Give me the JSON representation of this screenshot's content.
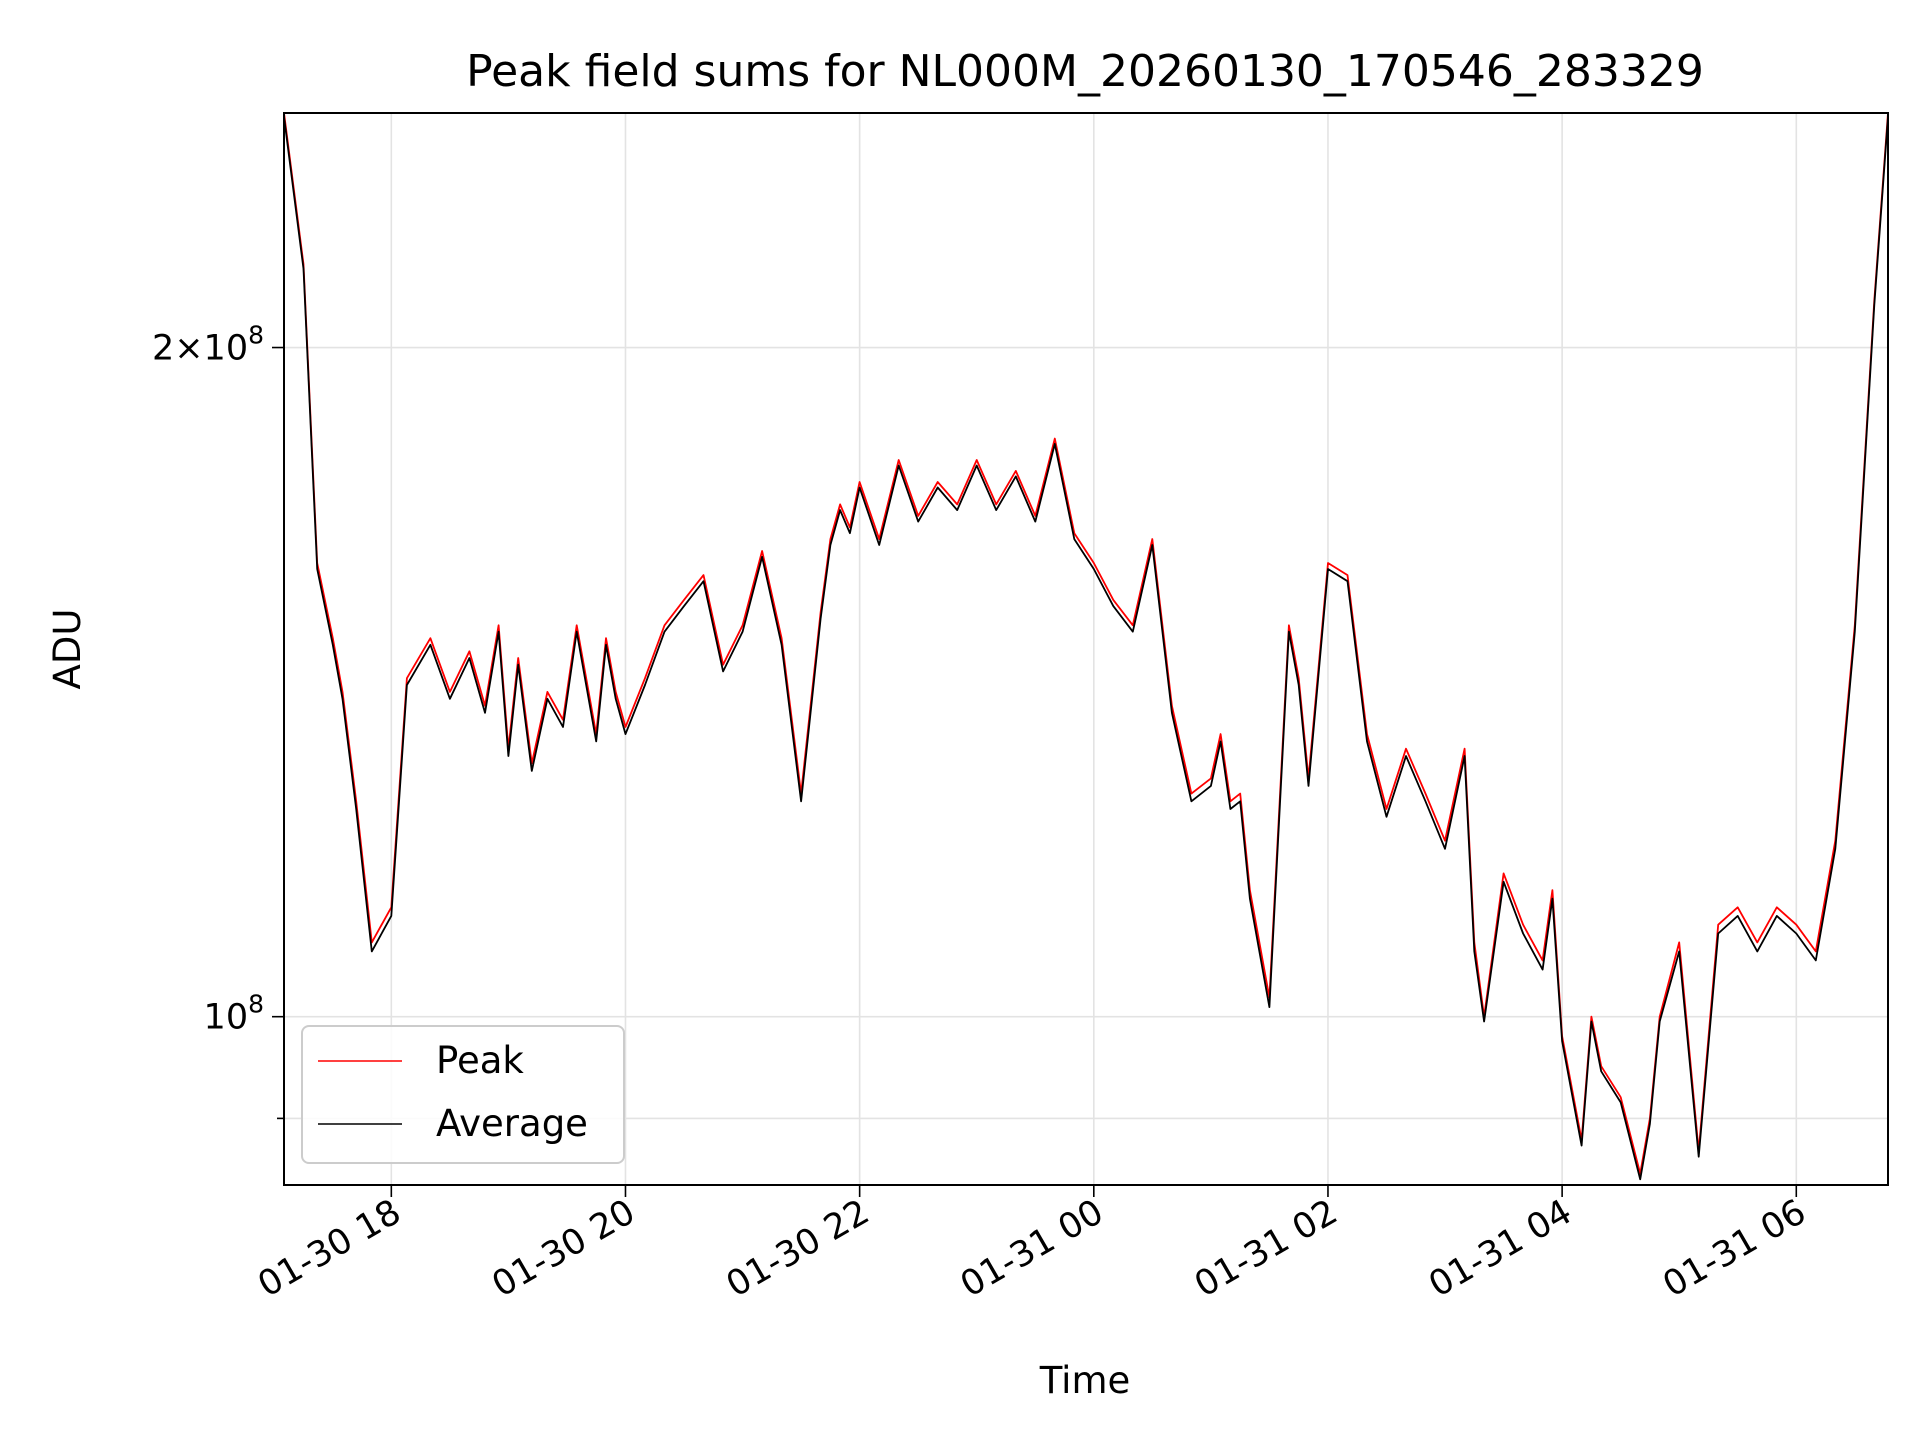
{
  "chart_data": {
    "type": "line",
    "title": "Peak field sums for NL000M_20260130_170546_283329",
    "xlabel": "Time",
    "ylabel": "ADU",
    "x_ticks": [
      "01-30 18",
      "01-30 20",
      "01-30 22",
      "01-31 00",
      "01-31 02",
      "01-31 04",
      "01-31 06"
    ],
    "y_ticks": [
      {
        "value": 100000000,
        "base": "10",
        "exp": "8",
        "mantissa": ""
      },
      {
        "value": 200000000,
        "base": "10",
        "exp": "8",
        "mantissa": "2×"
      }
    ],
    "yscale": "log",
    "xlim": [
      "01-30 17:05",
      "01-31 06:47"
    ],
    "ylim": [
      84000000,
      255000000
    ],
    "grid": true,
    "legend_position": "lower-left",
    "colors": {
      "Peak": "#ff0000",
      "Average": "#000000"
    },
    "series_x": [
      "01-30 17:05",
      "01-30 17:15",
      "01-30 17:22",
      "01-30 17:30",
      "01-30 17:35",
      "01-30 17:42",
      "01-30 17:50",
      "01-30 18:00",
      "01-30 18:08",
      "01-30 18:20",
      "01-30 18:30",
      "01-30 18:40",
      "01-30 18:48",
      "01-30 18:55",
      "01-30 19:00",
      "01-30 19:05",
      "01-30 19:12",
      "01-30 19:20",
      "01-30 19:28",
      "01-30 19:35",
      "01-30 19:45",
      "01-30 19:50",
      "01-30 19:55",
      "01-30 20:00",
      "01-30 20:10",
      "01-30 20:20",
      "01-30 20:30",
      "01-30 20:40",
      "01-30 20:50",
      "01-30 21:00",
      "01-30 21:10",
      "01-30 21:20",
      "01-30 21:30",
      "01-30 21:40",
      "01-30 21:45",
      "01-30 21:50",
      "01-30 21:55",
      "01-30 22:00",
      "01-30 22:10",
      "01-30 22:20",
      "01-30 22:30",
      "01-30 22:40",
      "01-30 22:50",
      "01-30 23:00",
      "01-30 23:10",
      "01-30 23:20",
      "01-30 23:30",
      "01-30 23:40",
      "01-30 23:50",
      "01-31 00:00",
      "01-31 00:10",
      "01-31 00:20",
      "01-31 00:30",
      "01-31 00:40",
      "01-31 00:50",
      "01-31 01:00",
      "01-31 01:05",
      "01-31 01:10",
      "01-31 01:15",
      "01-31 01:20",
      "01-31 01:30",
      "01-31 01:40",
      "01-31 01:45",
      "01-31 01:50",
      "01-31 02:00",
      "01-31 02:10",
      "01-31 02:20",
      "01-31 02:30",
      "01-31 02:40",
      "01-31 02:50",
      "01-31 03:00",
      "01-31 03:10",
      "01-31 03:15",
      "01-31 03:20",
      "01-31 03:30",
      "01-31 03:40",
      "01-31 03:50",
      "01-31 03:55",
      "01-31 04:00",
      "01-31 04:10",
      "01-31 04:15",
      "01-31 04:20",
      "01-31 04:30",
      "01-31 04:40",
      "01-31 04:45",
      "01-31 04:50",
      "01-31 05:00",
      "01-31 05:10",
      "01-31 05:20",
      "01-31 05:30",
      "01-31 05:40",
      "01-31 05:50",
      "01-31 06:00",
      "01-31 06:10",
      "01-31 06:20",
      "01-31 06:30",
      "01-31 06:40",
      "01-31 06:47"
    ],
    "series": [
      {
        "name": "Peak",
        "values": [
          255000000,
          218000000,
          160000000,
          148000000,
          140000000,
          125000000,
          108000000,
          112000000,
          142000000,
          148000000,
          140000000,
          146000000,
          138000000,
          150000000,
          132000000,
          145000000,
          130000000,
          140000000,
          136000000,
          150000000,
          134000000,
          148000000,
          140000000,
          135000000,
          142000000,
          150000000,
          154000000,
          158000000,
          144000000,
          150000000,
          162000000,
          148000000,
          126000000,
          152000000,
          164000000,
          170000000,
          166000000,
          174000000,
          164000000,
          178000000,
          168000000,
          174000000,
          170000000,
          178000000,
          170000000,
          176000000,
          168000000,
          182000000,
          165000000,
          160000000,
          154000000,
          150000000,
          164000000,
          138000000,
          126000000,
          128000000,
          134000000,
          125000000,
          126000000,
          114000000,
          102000000,
          150000000,
          142000000,
          128000000,
          160000000,
          158000000,
          134000000,
          124000000,
          132000000,
          126000000,
          120000000,
          132000000,
          108000000,
          100000000,
          116000000,
          110000000,
          106000000,
          114000000,
          98000000,
          88000000,
          100000000,
          95000000,
          92000000,
          85000000,
          90000000,
          100000000,
          108000000,
          87000000,
          110000000,
          112000000,
          108000000,
          112000000,
          110000000,
          107000000,
          120000000,
          150000000,
          210000000,
          255000000
        ]
      },
      {
        "name": "Average",
        "values": [
          254000000,
          217000000,
          159000000,
          147000000,
          139000000,
          124000000,
          107000000,
          111000000,
          141000000,
          147000000,
          139000000,
          145000000,
          137000000,
          149000000,
          131000000,
          144000000,
          129000000,
          139000000,
          135000000,
          149000000,
          133000000,
          147000000,
          139000000,
          134000000,
          141000000,
          149000000,
          153000000,
          157000000,
          143000000,
          149000000,
          161000000,
          147000000,
          125000000,
          151000000,
          163000000,
          169000000,
          165000000,
          173000000,
          163000000,
          177000000,
          167000000,
          173000000,
          169000000,
          177000000,
          169000000,
          175000000,
          167000000,
          181000000,
          164000000,
          159000000,
          153000000,
          149000000,
          163000000,
          137000000,
          125000000,
          127000000,
          133000000,
          124000000,
          125000000,
          113000000,
          101000000,
          149000000,
          141000000,
          127000000,
          159000000,
          157000000,
          133000000,
          123000000,
          131000000,
          125000000,
          119000000,
          131000000,
          107000000,
          99500000,
          115000000,
          109000000,
          105000000,
          113000000,
          97500000,
          87500000,
          99500000,
          94500000,
          91500000,
          84500000,
          89500000,
          99500000,
          107000000,
          86500000,
          109000000,
          111000000,
          107000000,
          111000000,
          109000000,
          106000000,
          119000000,
          149000000,
          209000000,
          254000000
        ]
      }
    ]
  }
}
